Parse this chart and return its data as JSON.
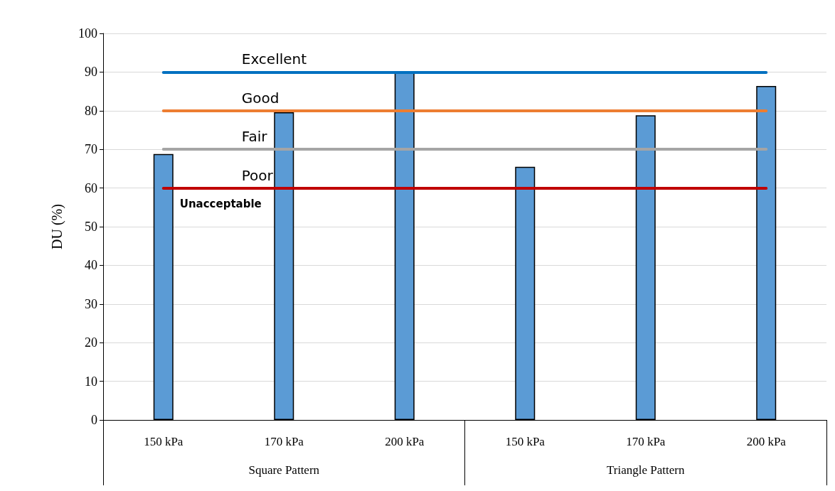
{
  "chart_data": {
    "type": "bar",
    "ylabel": "DU (%)",
    "categories": [
      "150 kPa",
      "170 kPa",
      "200 kPa",
      "150 kPa",
      "170 kPa",
      "200 kPa"
    ],
    "values": [
      68.8,
      79.6,
      90,
      65.5,
      78.8,
      86.4
    ],
    "color": "#5b9bd5",
    "ylim": [
      0,
      100
    ],
    "yticks": [
      0,
      10,
      20,
      30,
      40,
      50,
      60,
      70,
      80,
      90,
      100
    ],
    "grid": "y",
    "ref_lines": [
      {
        "axis": "y",
        "value": 90,
        "label": "Excellent",
        "color": "#0070c0"
      },
      {
        "axis": "y",
        "value": 80,
        "label": "Good",
        "color": "#ed7d31"
      },
      {
        "axis": "y",
        "value": 70,
        "label": "Fair",
        "color": "#a5a5a5"
      },
      {
        "axis": "y",
        "value": 60,
        "label": "Poor",
        "color": "#c00000"
      }
    ],
    "annotations": [
      "Square Pattern",
      "Triangle Pattern",
      "Unacceptable"
    ]
  }
}
